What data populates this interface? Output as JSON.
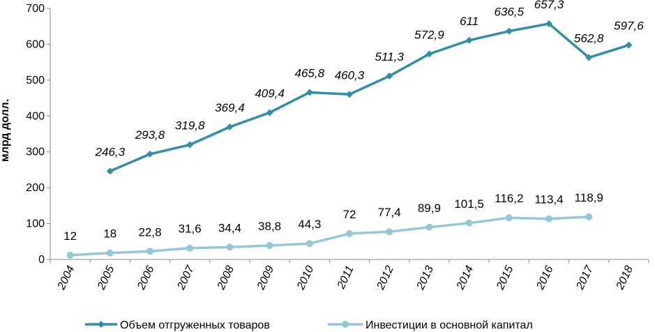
{
  "chart_data": {
    "type": "line",
    "ylabel": "млрд долл.",
    "ylim": [
      0,
      700
    ],
    "yticks": [
      0,
      100,
      200,
      300,
      400,
      500,
      600,
      700
    ],
    "categories": [
      "2004",
      "2005",
      "2006",
      "2007",
      "2008",
      "2009",
      "2010",
      "2011",
      "2012",
      "2013",
      "2014",
      "2015",
      "2016",
      "2017",
      "2018"
    ],
    "grid": false,
    "legend": "bottom",
    "series": [
      {
        "name": "Объем отгруженных товаров",
        "color": "#2e8fa6",
        "marker": "diamond",
        "values": [
          null,
          246.3,
          293.8,
          319.8,
          369.4,
          409.4,
          465.8,
          460.3,
          511.3,
          572.9,
          611,
          636.5,
          657.3,
          562.8,
          597.6
        ],
        "labels": [
          null,
          "246,3",
          "293,8",
          "319,8",
          "369,4",
          "409,4",
          "465,8",
          "460,3",
          "511,3",
          "572,9",
          "611",
          "636,5",
          "657,3",
          "562,8",
          "597,6"
        ]
      },
      {
        "name": "Инвестиции в основной капитал",
        "color": "#93c8d8",
        "marker": "circle",
        "values": [
          12,
          18,
          22.8,
          31.6,
          34.4,
          38.8,
          44.3,
          72,
          77.4,
          89.9,
          101.5,
          116.2,
          113.4,
          118.9,
          null
        ],
        "labels": [
          "12",
          "18",
          "22,8",
          "31,6",
          "34,4",
          "38,8",
          "44,3",
          "72",
          "77,4",
          "89,9",
          "101,5",
          "116,2",
          "113,4",
          "118,9",
          null
        ]
      }
    ]
  }
}
